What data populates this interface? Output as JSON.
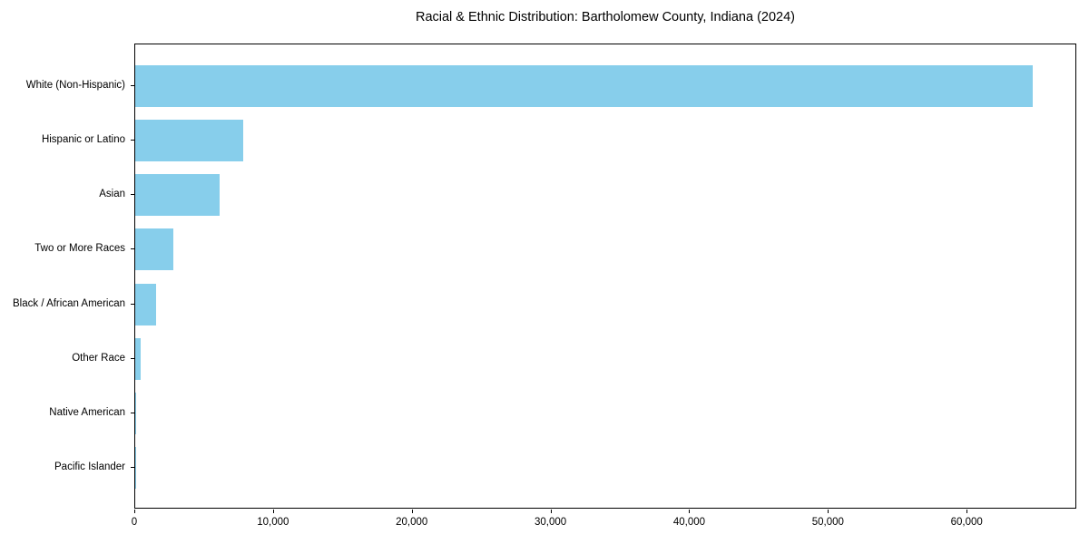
{
  "chart_data": {
    "type": "bar",
    "orientation": "horizontal",
    "title": "Racial & Ethnic Distribution: Bartholomew County, Indiana (2024)",
    "categories": [
      "White (Non-Hispanic)",
      "Hispanic or Latino",
      "Asian",
      "Two or More Races",
      "Black / African American",
      "Other Race",
      "Native American",
      "Pacific Islander"
    ],
    "values": [
      64700,
      7800,
      6100,
      2750,
      1500,
      380,
      60,
      20
    ],
    "xlabel": "",
    "ylabel": "",
    "xlim": [
      0,
      67900
    ],
    "x_ticks": [
      0,
      10000,
      20000,
      30000,
      40000,
      50000,
      60000
    ],
    "x_tick_labels": [
      "0",
      "10,000",
      "20,000",
      "30,000",
      "40,000",
      "50,000",
      "60,000"
    ],
    "bar_color": "#87CEEB",
    "spine_color": "#000000",
    "grid": false,
    "legend": null
  }
}
